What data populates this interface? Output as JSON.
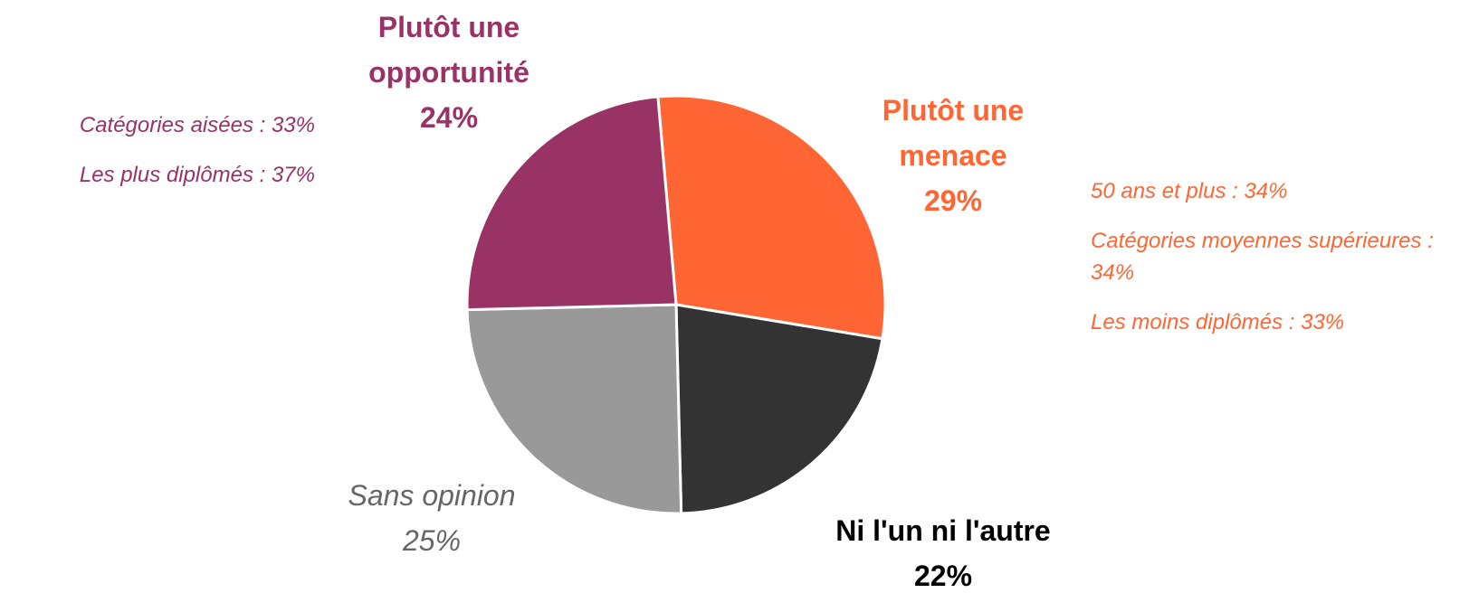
{
  "chart_data": {
    "type": "pie",
    "categories": [
      "Plutôt une menace",
      "Ni l'un ni l'autre",
      "Sans opinion",
      "Plutôt une opportunité"
    ],
    "values": [
      29,
      22,
      25,
      24
    ],
    "value_labels": [
      "29%",
      "22%",
      "25%",
      "24%"
    ],
    "colors": [
      "#ff6633",
      "#333333",
      "#999999",
      "#993366"
    ],
    "label_colors": [
      "#ff6633",
      "#000000",
      "#666666",
      "#993366"
    ],
    "notes": [
      {
        "color": "#993366",
        "items": [
          "Catégories aisées : 33%",
          "Les plus diplômés : 37%"
        ]
      },
      {
        "color": "#ff6633",
        "items": [
          "50 ans et plus : 34%",
          "Catégories moyennes supérieures : 34%",
          "Les moins diplômés : 33%"
        ]
      }
    ]
  }
}
